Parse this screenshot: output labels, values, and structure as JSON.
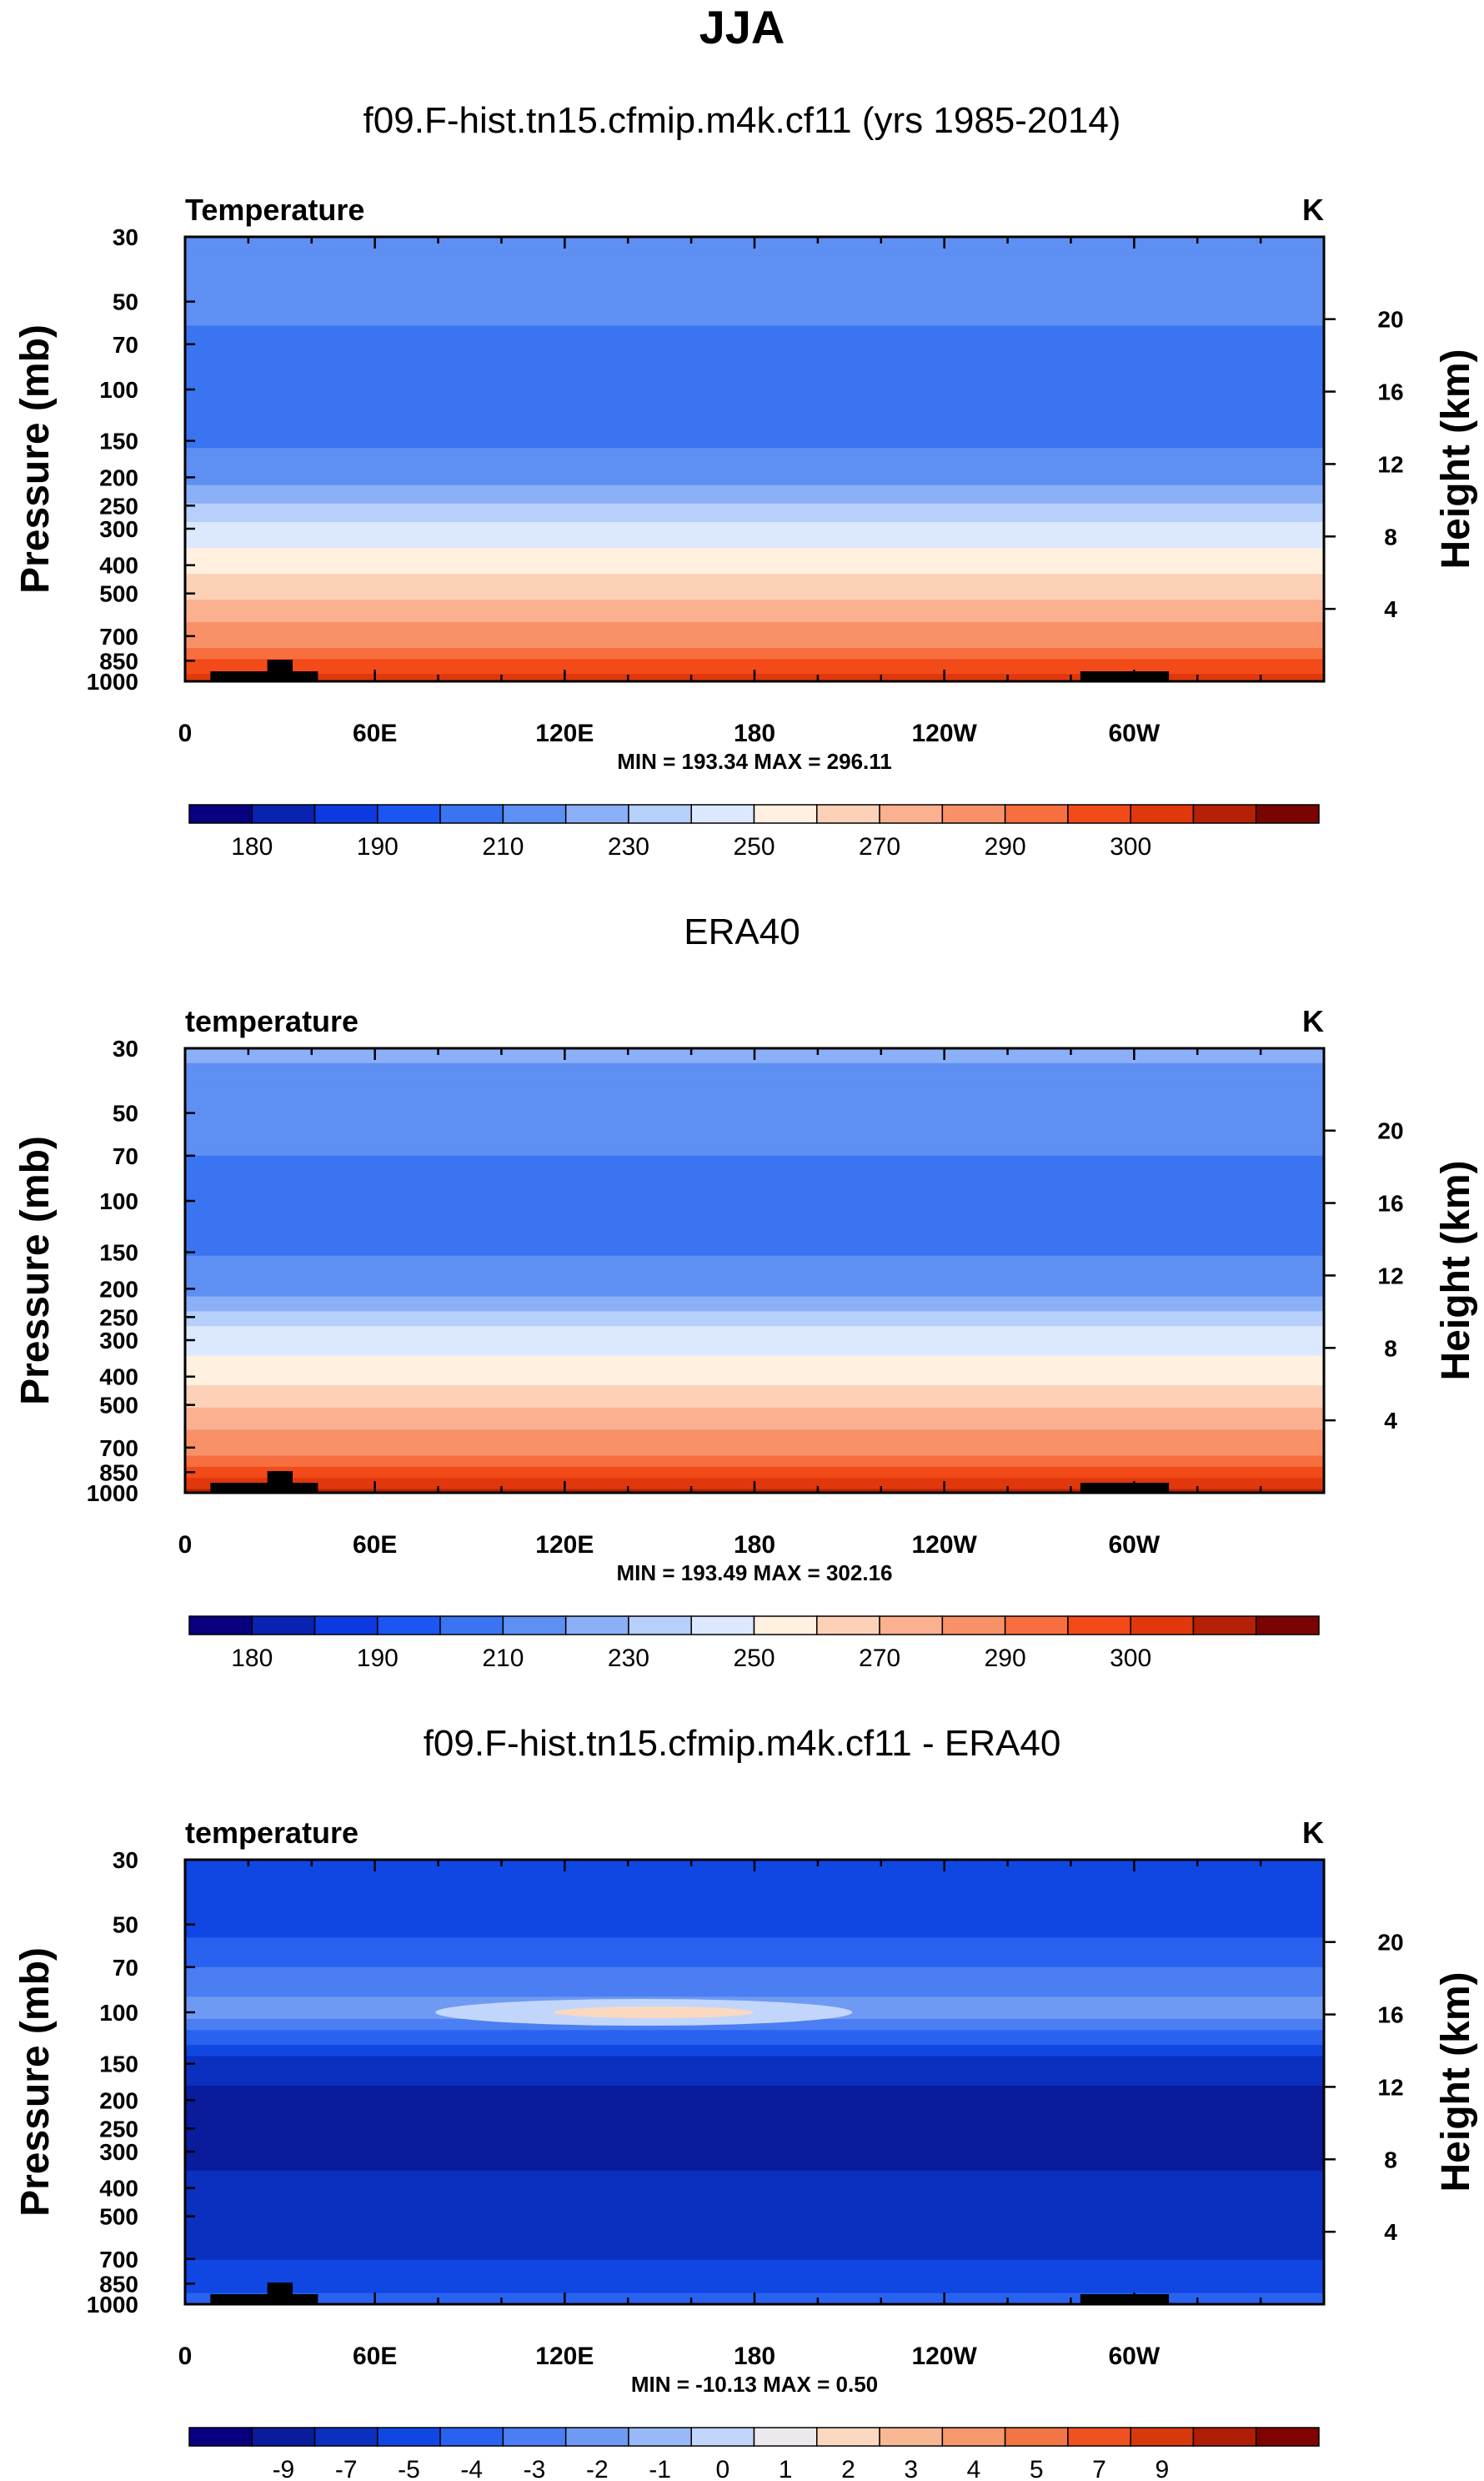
{
  "figure": {
    "title": "JJA",
    "left_axis_label": "Pressure (mb)",
    "right_axis_label": "Height (km)",
    "x_tick_labels": [
      "0",
      "60E",
      "120E",
      "180",
      "120W",
      "60W"
    ],
    "y_tick_labels": [
      "30",
      "50",
      "70",
      "100",
      "150",
      "200",
      "250",
      "300",
      "400",
      "500",
      "700",
      "850",
      "1000"
    ],
    "height_tick_labels": [
      "20",
      "16",
      "12",
      "8",
      "4"
    ]
  },
  "colors": {
    "temp_palette": [
      "#08007f",
      "#0a22b0",
      "#0d3ae0",
      "#1b56f2",
      "#3a74f0",
      "#5e8ff2",
      "#8bb0f7",
      "#b6cffb",
      "#dce8fd",
      "#fff0e0",
      "#fdd1b8",
      "#fbb18f",
      "#f99168",
      "#f76e3f",
      "#f24a18",
      "#e0380c",
      "#b42106",
      "#7a0402"
    ],
    "diff_palette": [
      "#08007f",
      "#0a1c9c",
      "#0b30c0",
      "#1047e3",
      "#2a62f0",
      "#4a7ef2",
      "#6f9af4",
      "#98b8f8",
      "#c2d6fb",
      "#ece8ee",
      "#fbd8c0",
      "#f9b894",
      "#f5986c",
      "#f27544",
      "#ee5220",
      "#d63a0c",
      "#b01e05",
      "#7f0300"
    ]
  },
  "panels": [
    {
      "name": "panel-model",
      "heading": "f09.F-hist.tn15.cfmip.m4k.cf11 (yrs 1985-2014)",
      "field_label": "Temperature",
      "units": "K",
      "minmax": "MIN = 193.34  MAX = 296.11",
      "colorbar_labels": [
        "180",
        "190",
        "210",
        "230",
        "250",
        "270",
        "290",
        "300"
      ]
    },
    {
      "name": "panel-obs",
      "heading": "ERA40",
      "field_label": "temperature",
      "units": "K",
      "minmax": "MIN = 193.49  MAX = 302.16",
      "colorbar_labels": [
        "180",
        "190",
        "210",
        "230",
        "250",
        "270",
        "290",
        "300"
      ]
    },
    {
      "name": "panel-diff",
      "heading": "f09.F-hist.tn15.cfmip.m4k.cf11 - ERA40",
      "field_label": "temperature",
      "units": "K",
      "minmax": "MIN = -10.13  MAX =   0.50",
      "colorbar_labels": [
        "-9",
        "-7",
        "-5",
        "-4",
        "-3",
        "-2",
        "-1",
        "0",
        "1",
        "2",
        "3",
        "4",
        "5",
        "7",
        "9"
      ]
    }
  ],
  "chart_data": [
    {
      "type": "heatmap",
      "title": "f09.F-hist.tn15.cfmip.m4k.cf11 (yrs 1985-2014)",
      "variable": "Temperature",
      "units": "K",
      "x_range": [
        0,
        360
      ],
      "pressure_levels_mb": [
        30,
        50,
        70,
        100,
        150,
        200,
        250,
        300,
        400,
        500,
        700,
        850,
        1000
      ],
      "zonal_mean_profile_K": [
        220,
        213,
        208,
        203,
        208,
        217,
        226,
        232,
        246,
        258,
        276,
        285,
        293
      ],
      "min": 193.34,
      "max": 296.11,
      "contour_levels": [
        175,
        180,
        185,
        190,
        200,
        210,
        220,
        225,
        230,
        240,
        250,
        260,
        270,
        280,
        285,
        290,
        295,
        300,
        305
      ]
    },
    {
      "type": "heatmap",
      "title": "ERA40",
      "variable": "temperature",
      "units": "K",
      "x_range": [
        0,
        360
      ],
      "pressure_levels_mb": [
        30,
        50,
        70,
        100,
        150,
        200,
        250,
        300,
        400,
        500,
        700,
        850,
        1000
      ],
      "zonal_mean_profile_K": [
        222,
        214,
        210,
        205,
        209,
        218,
        227,
        234,
        247,
        259,
        277,
        287,
        296
      ],
      "min": 193.49,
      "max": 302.16,
      "contour_levels": [
        175,
        180,
        185,
        190,
        200,
        210,
        220,
        225,
        230,
        240,
        250,
        260,
        270,
        280,
        285,
        290,
        295,
        300,
        305
      ]
    },
    {
      "type": "heatmap",
      "title": "f09.F-hist.tn15.cfmip.m4k.cf11 - ERA40",
      "variable": "temperature",
      "units": "K",
      "x_range": [
        0,
        360
      ],
      "pressure_levels_mb": [
        30,
        50,
        70,
        100,
        150,
        200,
        250,
        300,
        400,
        500,
        700,
        850,
        1000
      ],
      "zonal_mean_profile_K": [
        -5,
        -4.5,
        -3,
        -1.5,
        -5.5,
        -8,
        -8,
        -7.5,
        -6.5,
        -5.5,
        -5,
        -4.5,
        -3.5
      ],
      "min": -10.13,
      "max": 0.5,
      "contour_levels": [
        -10,
        -9,
        -7,
        -5,
        -4,
        -3,
        -2,
        -1,
        0,
        1,
        2,
        3,
        4,
        5,
        7,
        9,
        10
      ]
    }
  ]
}
